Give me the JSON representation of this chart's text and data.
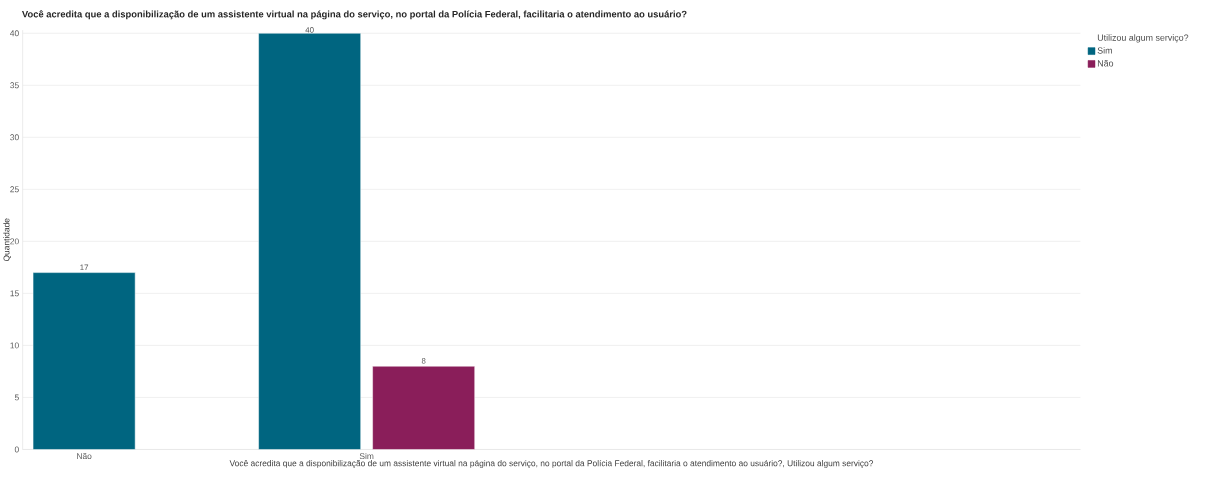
{
  "chart_data": {
    "type": "bar",
    "title": "Você acredita que a disponibilização de um assistente virtual na página do serviço, no portal da Polícia Federal, facilitaria o atendimento ao usuário?",
    "xlabel": "Você acredita que a disponibilização de um assistente virtual na página do serviço, no portal da Polícia Federal, facilitaria o atendimento ao usuário?, Utilizou algum serviço?",
    "ylabel": "Quantidade",
    "legend_title": "Utilizou algum serviço?",
    "categories": [
      "Não",
      "Sim"
    ],
    "series": [
      {
        "name": "Sim",
        "color": "#006580",
        "values": [
          17,
          40
        ]
      },
      {
        "name": "Não",
        "color": "#8a1e5a",
        "values": [
          null,
          8
        ]
      }
    ],
    "ylim": [
      0,
      40.3
    ],
    "yticks": [
      0,
      5,
      10,
      15,
      20,
      25,
      30,
      35,
      40
    ],
    "grid": "y",
    "legend": "top right",
    "data_labels": true
  }
}
